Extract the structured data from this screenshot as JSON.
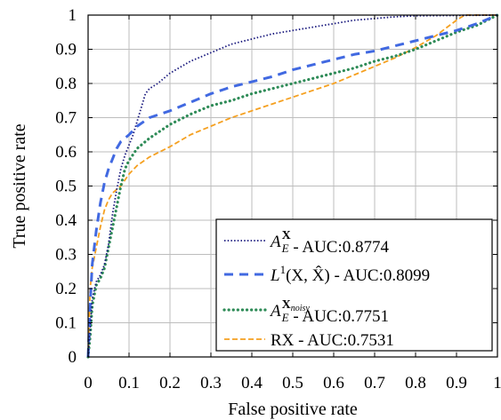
{
  "chart_data": {
    "type": "line",
    "xlabel": "False positive rate",
    "ylabel": "True positive rate",
    "xlim": [
      0,
      1
    ],
    "ylim": [
      0,
      1
    ],
    "grid": true,
    "legend_position": "bottom-right",
    "xticks": [
      {
        "value": 0,
        "label": "0"
      },
      {
        "value": 0.1,
        "label": "0.1"
      },
      {
        "value": 0.2,
        "label": "0.2"
      },
      {
        "value": 0.3,
        "label": "0.3"
      },
      {
        "value": 0.4,
        "label": "0.4"
      },
      {
        "value": 0.5,
        "label": "0.5"
      },
      {
        "value": 0.6,
        "label": "0.6"
      },
      {
        "value": 0.7,
        "label": "0.7"
      },
      {
        "value": 0.8,
        "label": "0.8"
      },
      {
        "value": 0.9,
        "label": "0.9"
      },
      {
        "value": 1,
        "label": "1"
      }
    ],
    "yticks": [
      {
        "value": 0,
        "label": "0"
      },
      {
        "value": 0.1,
        "label": "0.1"
      },
      {
        "value": 0.2,
        "label": "0.2"
      },
      {
        "value": 0.3,
        "label": "0.3"
      },
      {
        "value": 0.4,
        "label": "0.4"
      },
      {
        "value": 0.5,
        "label": "0.5"
      },
      {
        "value": 0.6,
        "label": "0.6"
      },
      {
        "value": 0.7,
        "label": "0.7"
      },
      {
        "value": 0.8,
        "label": "0.8"
      },
      {
        "value": 0.9,
        "label": "0.9"
      },
      {
        "value": 1,
        "label": "1"
      }
    ],
    "series": [
      {
        "legend": {
          "pre": "A",
          "sup": "X",
          "sub": "E",
          "post": " - AUC:0.8774"
        },
        "color": "#1a1a7e",
        "style": "dotted-fine",
        "points": [
          [
            0,
            0
          ],
          [
            0.005,
            0.08
          ],
          [
            0.01,
            0.17
          ],
          [
            0.02,
            0.22
          ],
          [
            0.03,
            0.24
          ],
          [
            0.04,
            0.27
          ],
          [
            0.05,
            0.33
          ],
          [
            0.06,
            0.42
          ],
          [
            0.07,
            0.49
          ],
          [
            0.08,
            0.55
          ],
          [
            0.09,
            0.59
          ],
          [
            0.1,
            0.62
          ],
          [
            0.11,
            0.65
          ],
          [
            0.12,
            0.69
          ],
          [
            0.13,
            0.73
          ],
          [
            0.14,
            0.77
          ],
          [
            0.15,
            0.785
          ],
          [
            0.17,
            0.8
          ],
          [
            0.2,
            0.83
          ],
          [
            0.25,
            0.865
          ],
          [
            0.3,
            0.89
          ],
          [
            0.35,
            0.915
          ],
          [
            0.4,
            0.93
          ],
          [
            0.45,
            0.945
          ],
          [
            0.5,
            0.955
          ],
          [
            0.55,
            0.965
          ],
          [
            0.6,
            0.975
          ],
          [
            0.65,
            0.985
          ],
          [
            0.7,
            0.99
          ],
          [
            0.75,
            0.995
          ],
          [
            0.8,
            0.998
          ],
          [
            0.9,
            0.999
          ],
          [
            1.0,
            1.0
          ]
        ]
      },
      {
        "legend": {
          "pre": "L",
          "supNum": "1",
          "math": "(X, X̂)",
          "post": " - AUC:0.8099"
        },
        "color": "#4169e1",
        "style": "dashed",
        "points": [
          [
            0,
            0
          ],
          [
            0.005,
            0.15
          ],
          [
            0.01,
            0.27
          ],
          [
            0.02,
            0.37
          ],
          [
            0.03,
            0.45
          ],
          [
            0.04,
            0.51
          ],
          [
            0.05,
            0.55
          ],
          [
            0.06,
            0.58
          ],
          [
            0.07,
            0.61
          ],
          [
            0.08,
            0.63
          ],
          [
            0.1,
            0.65
          ],
          [
            0.12,
            0.675
          ],
          [
            0.15,
            0.7
          ],
          [
            0.2,
            0.72
          ],
          [
            0.25,
            0.745
          ],
          [
            0.3,
            0.77
          ],
          [
            0.35,
            0.79
          ],
          [
            0.4,
            0.805
          ],
          [
            0.45,
            0.82
          ],
          [
            0.5,
            0.84
          ],
          [
            0.55,
            0.855
          ],
          [
            0.6,
            0.87
          ],
          [
            0.65,
            0.885
          ],
          [
            0.7,
            0.895
          ],
          [
            0.75,
            0.91
          ],
          [
            0.8,
            0.925
          ],
          [
            0.85,
            0.94
          ],
          [
            0.9,
            0.955
          ],
          [
            0.95,
            0.975
          ],
          [
            1.0,
            1.0
          ]
        ]
      },
      {
        "legend": {
          "pre": "A",
          "sup": "X",
          "supSub": "noisy",
          "sub": "E",
          "post": " - AUC:0.7751"
        },
        "color": "#2e8b57",
        "style": "dotted-bold",
        "points": [
          [
            0,
            0
          ],
          [
            0.005,
            0.06
          ],
          [
            0.01,
            0.15
          ],
          [
            0.02,
            0.21
          ],
          [
            0.03,
            0.23
          ],
          [
            0.04,
            0.26
          ],
          [
            0.05,
            0.32
          ],
          [
            0.06,
            0.38
          ],
          [
            0.07,
            0.44
          ],
          [
            0.08,
            0.5
          ],
          [
            0.09,
            0.55
          ],
          [
            0.1,
            0.575
          ],
          [
            0.12,
            0.61
          ],
          [
            0.15,
            0.64
          ],
          [
            0.2,
            0.68
          ],
          [
            0.25,
            0.71
          ],
          [
            0.3,
            0.735
          ],
          [
            0.35,
            0.75
          ],
          [
            0.4,
            0.77
          ],
          [
            0.45,
            0.785
          ],
          [
            0.5,
            0.8
          ],
          [
            0.55,
            0.815
          ],
          [
            0.6,
            0.83
          ],
          [
            0.65,
            0.845
          ],
          [
            0.7,
            0.865
          ],
          [
            0.75,
            0.88
          ],
          [
            0.8,
            0.9
          ],
          [
            0.85,
            0.925
          ],
          [
            0.9,
            0.95
          ],
          [
            0.95,
            0.97
          ],
          [
            1.0,
            1.0
          ]
        ]
      },
      {
        "legend": {
          "pre": "RX",
          "post": " - AUC:0.7531"
        },
        "color": "#f5a020",
        "style": "dashed-short",
        "points": [
          [
            0,
            0
          ],
          [
            0.005,
            0.2
          ],
          [
            0.01,
            0.26
          ],
          [
            0.02,
            0.32
          ],
          [
            0.03,
            0.38
          ],
          [
            0.04,
            0.43
          ],
          [
            0.05,
            0.46
          ],
          [
            0.06,
            0.48
          ],
          [
            0.08,
            0.5
          ],
          [
            0.1,
            0.535
          ],
          [
            0.12,
            0.56
          ],
          [
            0.15,
            0.585
          ],
          [
            0.2,
            0.615
          ],
          [
            0.25,
            0.65
          ],
          [
            0.3,
            0.675
          ],
          [
            0.35,
            0.7
          ],
          [
            0.4,
            0.72
          ],
          [
            0.45,
            0.74
          ],
          [
            0.5,
            0.76
          ],
          [
            0.55,
            0.78
          ],
          [
            0.6,
            0.8
          ],
          [
            0.65,
            0.825
          ],
          [
            0.7,
            0.85
          ],
          [
            0.75,
            0.875
          ],
          [
            0.8,
            0.905
          ],
          [
            0.85,
            0.94
          ],
          [
            0.9,
            0.985
          ],
          [
            0.92,
            1.0
          ],
          [
            1.0,
            1.0
          ]
        ]
      }
    ]
  }
}
